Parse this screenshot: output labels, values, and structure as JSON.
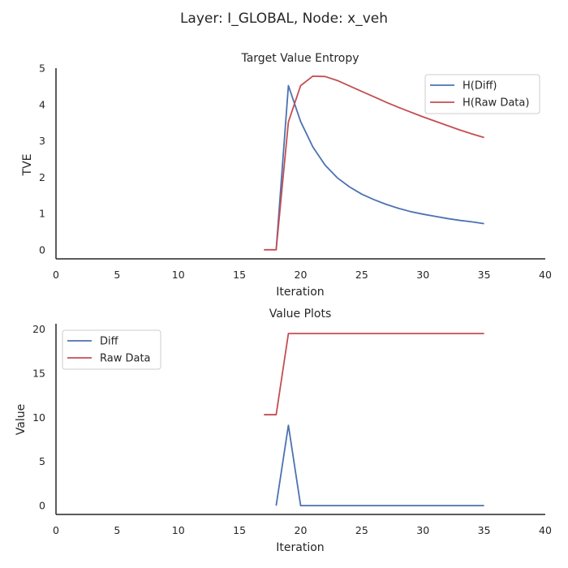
{
  "figure_title": "Layer: I_GLOBAL, Node: x_veh",
  "colors": {
    "blue": "#4c72b0",
    "red": "#c44e52",
    "axis": "#262626"
  },
  "chart_data": [
    {
      "type": "line",
      "title": "Target Value Entropy",
      "xlabel": "Iteration",
      "ylabel": "TVE",
      "xlim": [
        0,
        40
      ],
      "ylim": [
        -0.25,
        5
      ],
      "xticks": [
        0,
        5,
        10,
        15,
        20,
        25,
        30,
        35,
        40
      ],
      "yticks": [
        0,
        1,
        2,
        3,
        4,
        5
      ],
      "grid": false,
      "legend": "top-right",
      "series": [
        {
          "name": "H(Diff)",
          "color": "#4c72b0",
          "x": [
            18,
            19,
            20,
            21,
            22,
            23,
            24,
            25,
            26,
            27,
            28,
            29,
            30,
            31,
            32,
            33,
            34,
            35
          ],
          "y": [
            0,
            4.52,
            3.53,
            2.83,
            2.33,
            1.98,
            1.73,
            1.53,
            1.38,
            1.25,
            1.14,
            1.05,
            0.98,
            0.92,
            0.86,
            0.81,
            0.77,
            0.72
          ]
        },
        {
          "name": "H(Raw Data)",
          "color": "#c44e52",
          "x": [
            17,
            18,
            19,
            20,
            21,
            22,
            23,
            24,
            25,
            26,
            27,
            28,
            29,
            30,
            31,
            32,
            33,
            34,
            35
          ],
          "y": [
            0,
            0,
            3.52,
            4.52,
            4.78,
            4.77,
            4.66,
            4.51,
            4.36,
            4.21,
            4.06,
            3.92,
            3.79,
            3.66,
            3.54,
            3.42,
            3.3,
            3.19,
            3.09
          ]
        }
      ]
    },
    {
      "type": "line",
      "title": "Value Plots",
      "xlabel": "Iteration",
      "ylabel": "Value",
      "xlim": [
        0,
        40
      ],
      "ylim": [
        -1,
        20.6
      ],
      "xticks": [
        0,
        5,
        10,
        15,
        20,
        25,
        30,
        35,
        40
      ],
      "yticks": [
        0,
        5,
        10,
        15,
        20
      ],
      "grid": false,
      "legend": "top-left",
      "series": [
        {
          "name": "Diff",
          "color": "#4c72b0",
          "x": [
            18,
            19,
            20,
            21,
            22,
            23,
            24,
            25,
            26,
            27,
            28,
            29,
            30,
            31,
            32,
            33,
            34,
            35
          ],
          "y": [
            0,
            9.1,
            0,
            0,
            0,
            0,
            0,
            0,
            0,
            0,
            0,
            0,
            0,
            0,
            0,
            0,
            0,
            0
          ]
        },
        {
          "name": "Raw Data",
          "color": "#c44e52",
          "x": [
            17,
            18,
            19,
            20,
            21,
            22,
            23,
            24,
            25,
            26,
            27,
            28,
            29,
            30,
            31,
            32,
            33,
            34,
            35
          ],
          "y": [
            10.3,
            10.3,
            19.5,
            19.5,
            19.5,
            19.5,
            19.5,
            19.5,
            19.5,
            19.5,
            19.5,
            19.5,
            19.5,
            19.5,
            19.5,
            19.5,
            19.5,
            19.5,
            19.5
          ]
        }
      ]
    }
  ]
}
